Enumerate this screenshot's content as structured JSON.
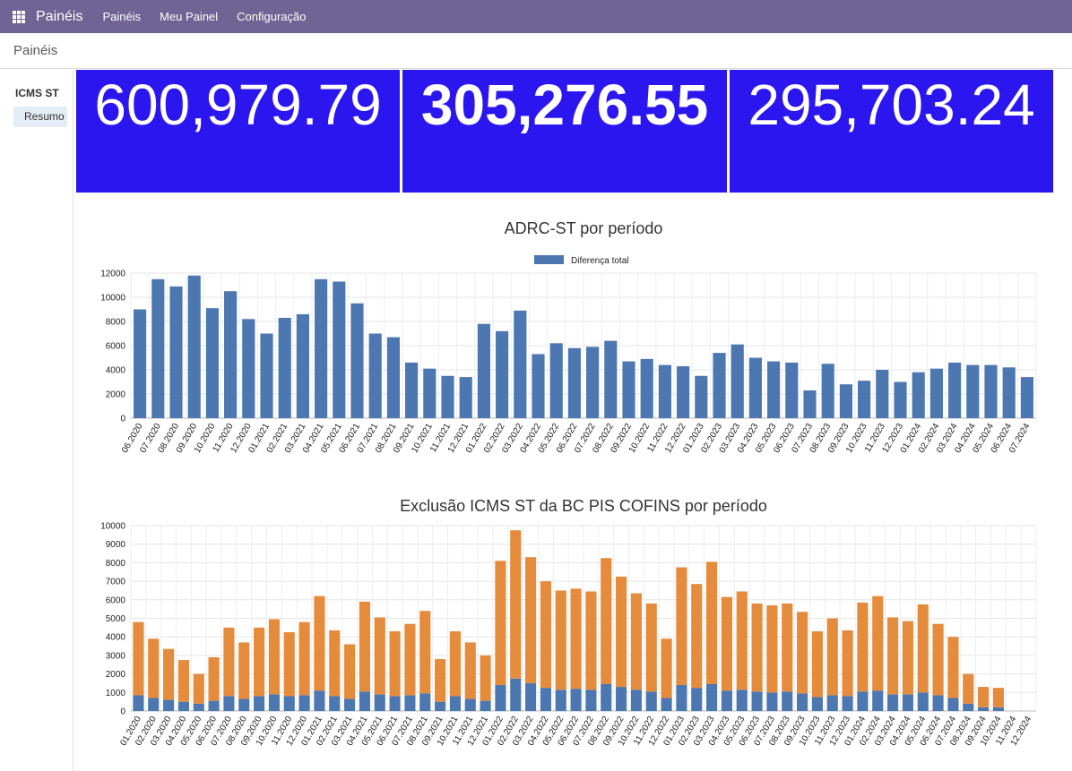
{
  "topbar": {
    "brand": "Painéis",
    "menu": [
      "Painéis",
      "Meu Painel",
      "Configuração"
    ]
  },
  "breadcrumb": "Painéis",
  "sidebar": {
    "heading": "ICMS ST",
    "items": [
      "Resumo"
    ]
  },
  "kpis": [
    "600,979.79",
    "305,276.55",
    "295,703.24"
  ],
  "colors": {
    "topbar": "#6f6493",
    "kpi_bg": "#2b16f0",
    "series_blue": "#4c77b0",
    "series_orange": "#e58b3c"
  },
  "chart_data": [
    {
      "type": "bar",
      "title": "ADRC-ST por período",
      "legend": "top",
      "grid": true,
      "ylim": [
        0,
        12000
      ],
      "yticks": [
        0,
        2000,
        4000,
        6000,
        8000,
        10000,
        12000
      ],
      "categories": [
        "06.2020",
        "07.2020",
        "08.2020",
        "09.2020",
        "10.2020",
        "11.2020",
        "12.2020",
        "01.2021",
        "02.2021",
        "03.2021",
        "04.2021",
        "05.2021",
        "06.2021",
        "07.2021",
        "08.2021",
        "09.2021",
        "10.2021",
        "11.2021",
        "12.2021",
        "01.2022",
        "02.2022",
        "03.2022",
        "04.2022",
        "05.2022",
        "06.2022",
        "07.2022",
        "08.2022",
        "09.2022",
        "10.2022",
        "11.2022",
        "12.2022",
        "01.2023",
        "02.2023",
        "03.2023",
        "04.2023",
        "05.2023",
        "06.2023",
        "07.2023",
        "08.2023",
        "09.2023",
        "10.2023",
        "11.2023",
        "12.2023",
        "01.2024",
        "02.2024",
        "03.2024",
        "04.2024",
        "05.2024",
        "06.2024",
        "07.2024"
      ],
      "series": [
        {
          "name": "Diferença total",
          "values": [
            9000,
            11500,
            10900,
            11800,
            9100,
            10500,
            8200,
            7000,
            8300,
            8600,
            11500,
            11300,
            9500,
            7000,
            6700,
            4600,
            4100,
            3500,
            3400,
            7800,
            7200,
            8900,
            5300,
            6200,
            5800,
            5900,
            6400,
            4700,
            4900,
            4400,
            4300,
            3500,
            5400,
            6100,
            5000,
            4700,
            4600,
            2300,
            4500,
            2800,
            3100,
            4000,
            3000,
            3800,
            4100,
            4600,
            4400,
            4400,
            4200,
            3400
          ]
        }
      ]
    },
    {
      "type": "bar",
      "stacked": true,
      "title": "Exclusão ICMS ST da BC PIS COFINS por período",
      "grid": true,
      "ylim": [
        0,
        10000
      ],
      "yticks": [
        0,
        1000,
        2000,
        3000,
        4000,
        5000,
        6000,
        7000,
        8000,
        9000,
        10000
      ],
      "categories": [
        "01.2020",
        "02.2020",
        "03.2020",
        "04.2020",
        "05.2020",
        "06.2020",
        "07.2020",
        "08.2020",
        "09.2020",
        "10.2020",
        "11.2020",
        "12.2020",
        "01.2021",
        "02.2021",
        "03.2021",
        "04.2021",
        "05.2021",
        "06.2021",
        "07.2021",
        "08.2021",
        "09.2021",
        "10.2021",
        "11.2021",
        "12.2021",
        "01.2022",
        "02.2022",
        "03.2022",
        "04.2022",
        "05.2022",
        "06.2022",
        "07.2022",
        "08.2022",
        "09.2022",
        "10.2022",
        "11.2022",
        "12.2022",
        "01.2023",
        "02.2023",
        "03.2023",
        "04.2023",
        "05.2023",
        "06.2023",
        "07.2023",
        "08.2023",
        "09.2023",
        "10.2023",
        "11.2023",
        "12.2023",
        "01.2024",
        "02.2024",
        "03.2024",
        "04.2024",
        "05.2024",
        "06.2024",
        "07.2024",
        "08.2024",
        "09.2024",
        "10.2024",
        "11.2024",
        "12.2024"
      ],
      "series": [
        {
          "values": [
            850,
            700,
            600,
            500,
            400,
            550,
            800,
            650,
            800,
            900,
            800,
            850,
            1100,
            800,
            650,
            1050,
            900,
            800,
            850,
            950,
            500,
            800,
            650,
            550,
            1400,
            1750,
            1500,
            1250,
            1150,
            1200,
            1150,
            1450,
            1300,
            1150,
            1050,
            700,
            1400,
            1250,
            1450,
            1100,
            1150,
            1050,
            1000,
            1050,
            950,
            750,
            850,
            800,
            1050,
            1100,
            900,
            900,
            1000,
            850,
            700,
            400,
            200,
            200,
            0,
            0
          ]
        },
        {
          "values": [
            3950,
            3200,
            2750,
            2250,
            1600,
            2350,
            3700,
            3050,
            3700,
            4050,
            3450,
            3950,
            5100,
            3550,
            2950,
            4850,
            4150,
            3500,
            3850,
            4450,
            2300,
            3500,
            3050,
            2450,
            6700,
            8000,
            6800,
            5750,
            5350,
            5400,
            5300,
            6800,
            5950,
            5200,
            4750,
            3200,
            6350,
            5600,
            6600,
            5050,
            5300,
            4750,
            4700,
            4750,
            4400,
            3550,
            4150,
            3550,
            4800,
            5100,
            4150,
            3950,
            4750,
            3850,
            3300,
            1600,
            1100,
            1050,
            0,
            0
          ]
        }
      ]
    }
  ]
}
